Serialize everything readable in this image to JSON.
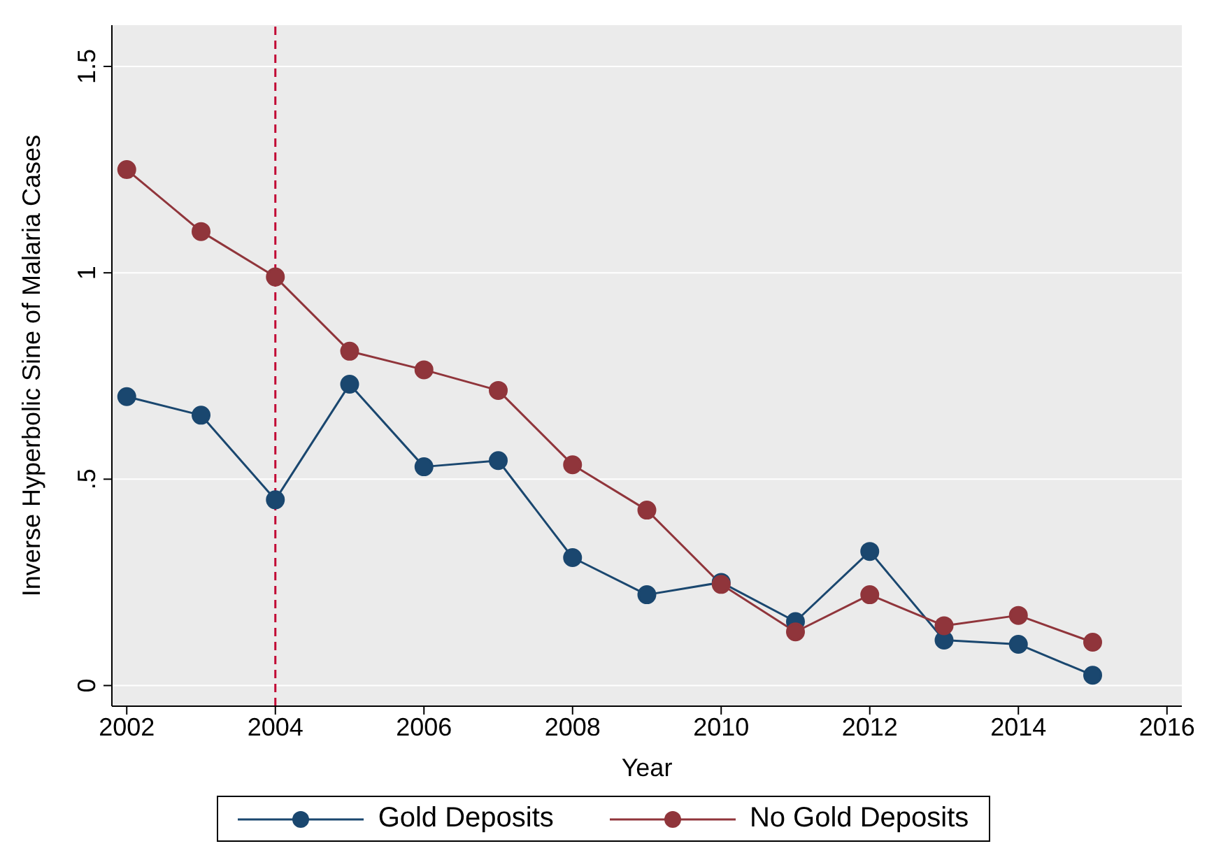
{
  "chart_data": {
    "type": "line",
    "xlabel": "Year",
    "ylabel": "Inverse Hyperbolic Sine of Malaria Cases",
    "x": [
      2002,
      2003,
      2004,
      2005,
      2006,
      2007,
      2008,
      2009,
      2010,
      2011,
      2012,
      2013,
      2014,
      2015
    ],
    "series": [
      {
        "name": "Gold Deposits",
        "color": "#1a476f",
        "values": [
          0.7,
          0.655,
          0.45,
          0.73,
          0.53,
          0.545,
          0.31,
          0.22,
          0.25,
          0.155,
          0.325,
          0.11,
          0.1,
          0.025
        ]
      },
      {
        "name": "No Gold Deposits",
        "color": "#90353b",
        "values": [
          1.25,
          1.1,
          0.99,
          0.81,
          0.765,
          0.715,
          0.535,
          0.425,
          0.245,
          0.13,
          0.22,
          0.145,
          0.17,
          0.105
        ]
      }
    ],
    "xlim": [
      2001.8,
      2016.2
    ],
    "xticks": [
      2002,
      2004,
      2006,
      2008,
      2010,
      2012,
      2014,
      2016
    ],
    "ylim": [
      -0.05,
      1.6
    ],
    "yticks": [
      0,
      {
        "value": 0.5,
        "label": ".5"
      },
      1,
      1.5
    ],
    "ref_lines": [
      {
        "axis": "x",
        "value": 2004,
        "color": "#c10534",
        "line_style": "dashed"
      }
    ],
    "grid": "y",
    "legend": "bottom",
    "marker": "circle",
    "line_style": "solid"
  }
}
